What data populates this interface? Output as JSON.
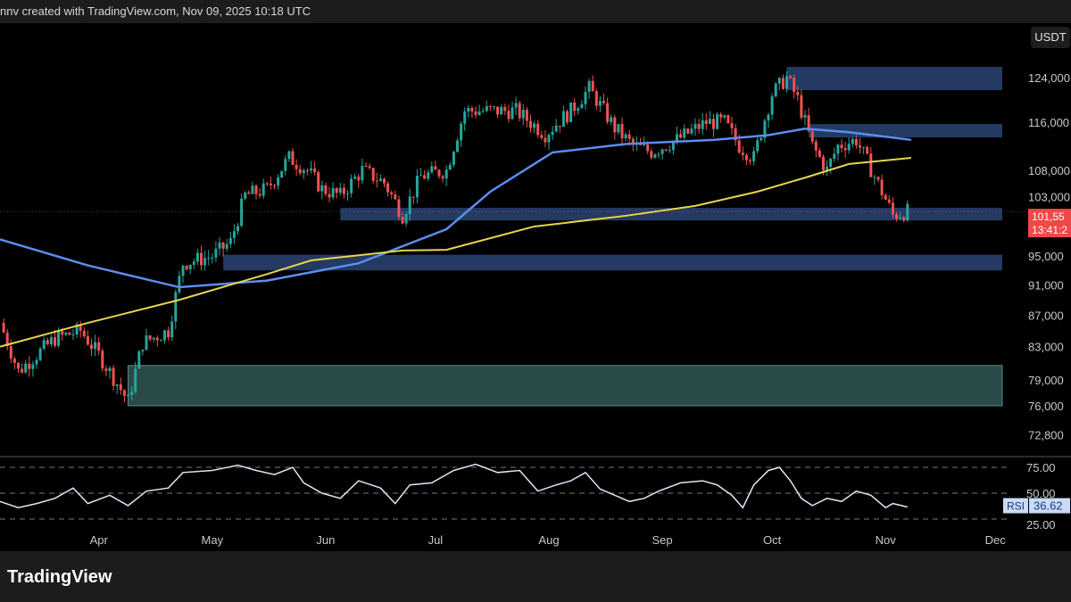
{
  "header": {
    "caption": "nnv created with TradingView.com, Nov 09, 2025 10:18 UTC"
  },
  "currency_badge": "USDT",
  "footer": {
    "logo_text": "TradingView"
  },
  "colors": {
    "up": "#26a69a",
    "down": "#ef5350",
    "ma_fast": "#5b8def",
    "ma_slow": "#e8d44d",
    "zone": "#243a63",
    "zone_teal": "#2a4a4a",
    "last_price": "#f04848",
    "rsi": "#e0e6f5"
  },
  "chart_data": {
    "type": "candlestick",
    "title": "",
    "x_unit": "days since Mar 05",
    "y_scale": "log",
    "ylim": [
      72800,
      128000
    ],
    "y_ticks": [
      "124,000",
      "116,000",
      "108,000",
      "103,000",
      "95,000",
      "91,000",
      "87,000",
      "83,000",
      "79,000",
      "76,000",
      "72,800"
    ],
    "y_tick_values": [
      124000,
      116000,
      108000,
      103000,
      95000,
      91000,
      87000,
      83000,
      79000,
      76000,
      72800
    ],
    "x_ticks": [
      {
        "label": "Apr",
        "day": 27
      },
      {
        "label": "May",
        "day": 58
      },
      {
        "label": "Jun",
        "day": 89
      },
      {
        "label": "Jul",
        "day": 119
      },
      {
        "label": "Aug",
        "day": 150
      },
      {
        "label": "Sep",
        "day": 181
      },
      {
        "label": "Oct",
        "day": 211
      },
      {
        "label": "Nov",
        "day": 242
      },
      {
        "label": "Dec",
        "day": 272
      }
    ],
    "price_path": [
      [
        0,
        86000
      ],
      [
        5,
        80000
      ],
      [
        15,
        84000
      ],
      [
        22,
        85000
      ],
      [
        27,
        82000
      ],
      [
        35,
        76500
      ],
      [
        39,
        83500
      ],
      [
        46,
        85000
      ],
      [
        50,
        94000
      ],
      [
        58,
        95000
      ],
      [
        63,
        97000
      ],
      [
        67,
        104000
      ],
      [
        73,
        105000
      ],
      [
        79,
        110000
      ],
      [
        84,
        108000
      ],
      [
        88,
        105000
      ],
      [
        93,
        104000
      ],
      [
        99,
        108000
      ],
      [
        105,
        106000
      ],
      [
        110,
        101000
      ],
      [
        115,
        107000
      ],
      [
        122,
        108000
      ],
      [
        127,
        118000
      ],
      [
        132,
        118000
      ],
      [
        141,
        118000
      ],
      [
        149,
        114000
      ],
      [
        156,
        118000
      ],
      [
        161,
        122000
      ],
      [
        168,
        115000
      ],
      [
        173,
        112000
      ],
      [
        178,
        111000
      ],
      [
        185,
        113000
      ],
      [
        193,
        116000
      ],
      [
        198,
        116000
      ],
      [
        202,
        112000
      ],
      [
        206,
        110000
      ],
      [
        211,
        121000
      ],
      [
        215,
        124000
      ],
      [
        218,
        120000
      ],
      [
        222,
        112000
      ],
      [
        226,
        108000
      ],
      [
        229,
        112000
      ],
      [
        234,
        113000
      ],
      [
        239,
        107000
      ],
      [
        244,
        101000
      ],
      [
        248,
        101550
      ]
    ],
    "ma_fast": [
      [
        0,
        97400
      ],
      [
        24,
        93700
      ],
      [
        49,
        90700
      ],
      [
        73,
        91600
      ],
      [
        98,
        94000
      ],
      [
        122,
        98900
      ],
      [
        134,
        104600
      ],
      [
        151,
        110900
      ],
      [
        171,
        112300
      ],
      [
        195,
        113000
      ],
      [
        210,
        113800
      ],
      [
        220,
        114900
      ],
      [
        232,
        114300
      ],
      [
        249,
        113000
      ]
    ],
    "ma_slow": [
      [
        0,
        83000
      ],
      [
        24,
        86000
      ],
      [
        49,
        89000
      ],
      [
        73,
        92500
      ],
      [
        85,
        94400
      ],
      [
        110,
        95800
      ],
      [
        122,
        95900
      ],
      [
        146,
        99300
      ],
      [
        171,
        100900
      ],
      [
        190,
        102400
      ],
      [
        207,
        104600
      ],
      [
        220,
        106800
      ],
      [
        232,
        109000
      ],
      [
        249,
        110000
      ]
    ],
    "zones": [
      {
        "from_day": 215,
        "low": 121700,
        "high": 126000,
        "style": "blue"
      },
      {
        "from_day": 221,
        "low": 113400,
        "high": 115700,
        "style": "blue"
      },
      {
        "from_day": 93,
        "low": 100200,
        "high": 102100,
        "style": "blue"
      },
      {
        "from_day": 61,
        "low": 93000,
        "high": 95200,
        "style": "blue"
      },
      {
        "from_day": 35,
        "low": 76000,
        "high": 80700,
        "style": "teal"
      }
    ],
    "last_price": {
      "price": "101,55",
      "countdown": "13:41:2",
      "value": 101550
    },
    "rsi": {
      "label": "RSI",
      "value": "36.62",
      "levels": [
        "75.00",
        "50.00",
        "25.00"
      ],
      "level_values": [
        75,
        50,
        25
      ],
      "points": [
        [
          0,
          42
        ],
        [
          5,
          36
        ],
        [
          10,
          40
        ],
        [
          15,
          45
        ],
        [
          20,
          55
        ],
        [
          24,
          40
        ],
        [
          30,
          48
        ],
        [
          35,
          38
        ],
        [
          40,
          52
        ],
        [
          46,
          55
        ],
        [
          50,
          70
        ],
        [
          58,
          72
        ],
        [
          65,
          77
        ],
        [
          70,
          72
        ],
        [
          75,
          68
        ],
        [
          80,
          75
        ],
        [
          83,
          60
        ],
        [
          88,
          50
        ],
        [
          93,
          45
        ],
        [
          98,
          62
        ],
        [
          104,
          55
        ],
        [
          108,
          40
        ],
        [
          112,
          58
        ],
        [
          118,
          60
        ],
        [
          124,
          72
        ],
        [
          130,
          78
        ],
        [
          136,
          70
        ],
        [
          142,
          72
        ],
        [
          147,
          52
        ],
        [
          152,
          58
        ],
        [
          156,
          62
        ],
        [
          160,
          70
        ],
        [
          164,
          54
        ],
        [
          168,
          48
        ],
        [
          172,
          42
        ],
        [
          176,
          45
        ],
        [
          180,
          52
        ],
        [
          186,
          60
        ],
        [
          192,
          62
        ],
        [
          196,
          58
        ],
        [
          200,
          48
        ],
        [
          203,
          36
        ],
        [
          206,
          58
        ],
        [
          210,
          72
        ],
        [
          213,
          75
        ],
        [
          216,
          62
        ],
        [
          219,
          45
        ],
        [
          222,
          38
        ],
        [
          226,
          45
        ],
        [
          230,
          42
        ],
        [
          234,
          52
        ],
        [
          238,
          48
        ],
        [
          242,
          36
        ],
        [
          244,
          40
        ],
        [
          248,
          36.62
        ]
      ]
    }
  }
}
